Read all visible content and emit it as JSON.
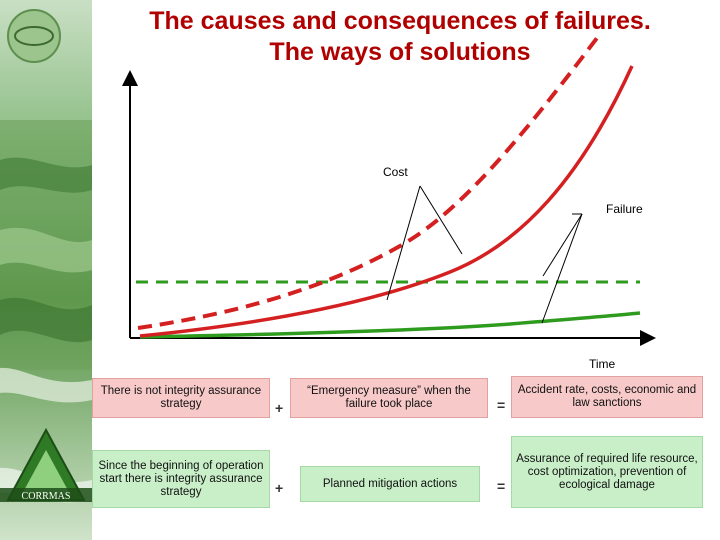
{
  "title": {
    "line1": "The causes and consequences of failures.",
    "line2": "The ways of solutions"
  },
  "chart": {
    "labels": {
      "cost": "Cost",
      "failure": "Failure",
      "time": "Time"
    },
    "colors": {
      "red": "#d42020",
      "green": "#2e9b1f",
      "axis": "#000000",
      "dashed_green": "#2e9b1f"
    }
  },
  "rows": [
    {
      "cause": "There is not integrity assurance strategy",
      "op1": "+",
      "action": "“Emergency measure” when the failure took place",
      "op2": "=",
      "result": "Accident rate, costs, economic and law sanctions"
    },
    {
      "cause": "Since the beginning of operation start there is integrity assurance strategy",
      "op1": "+",
      "action": "Planned mitigation actions",
      "op2": "=",
      "result": "Assurance of required life resource, cost optimization, prevention of ecological damage"
    }
  ],
  "logo": {
    "text": "CORRMAS"
  }
}
